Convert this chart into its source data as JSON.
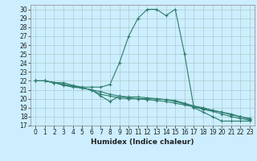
{
  "xlabel": "Humidex (Indice chaleur)",
  "bg_color": "#cceeff",
  "grid_color": "#aacccc",
  "line_color": "#2d7d6e",
  "xlim": [
    -0.5,
    23.5
  ],
  "ylim": [
    17,
    30.5
  ],
  "xticks": [
    0,
    1,
    2,
    3,
    4,
    5,
    6,
    7,
    8,
    9,
    10,
    11,
    12,
    13,
    14,
    15,
    16,
    17,
    18,
    19,
    20,
    21,
    22,
    23
  ],
  "yticks": [
    17,
    18,
    19,
    20,
    21,
    22,
    23,
    24,
    25,
    26,
    27,
    28,
    29,
    30
  ],
  "lines": [
    [
      22.0,
      22.0,
      21.8,
      21.8,
      21.5,
      21.3,
      21.3,
      21.3,
      21.6,
      24.0,
      27.0,
      29.0,
      30.0,
      30.0,
      29.3,
      30.0,
      25.0,
      19.0,
      18.5,
      18.0,
      17.5,
      17.5,
      17.5,
      17.5
    ],
    [
      22.0,
      22.0,
      21.8,
      21.6,
      21.4,
      21.2,
      21.0,
      20.8,
      20.5,
      20.3,
      20.1,
      20.0,
      19.9,
      19.8,
      19.7,
      19.5,
      19.3,
      19.1,
      18.9,
      18.7,
      18.5,
      18.3,
      18.0,
      17.8
    ],
    [
      22.0,
      22.0,
      21.8,
      21.6,
      21.4,
      21.2,
      21.0,
      20.5,
      20.3,
      20.1,
      20.0,
      20.0,
      20.0,
      20.0,
      19.9,
      19.8,
      19.5,
      19.2,
      19.0,
      18.7,
      18.5,
      18.2,
      18.0,
      17.7
    ],
    [
      22.0,
      22.0,
      21.8,
      21.5,
      21.3,
      21.2,
      21.0,
      20.3,
      19.7,
      20.3,
      20.2,
      20.2,
      20.1,
      20.0,
      19.9,
      19.7,
      19.4,
      19.1,
      18.8,
      18.6,
      18.3,
      18.0,
      17.8,
      17.6
    ]
  ],
  "figsize": [
    3.2,
    2.0
  ],
  "dpi": 100,
  "tick_fontsize": 5.5,
  "xlabel_fontsize": 6.5
}
